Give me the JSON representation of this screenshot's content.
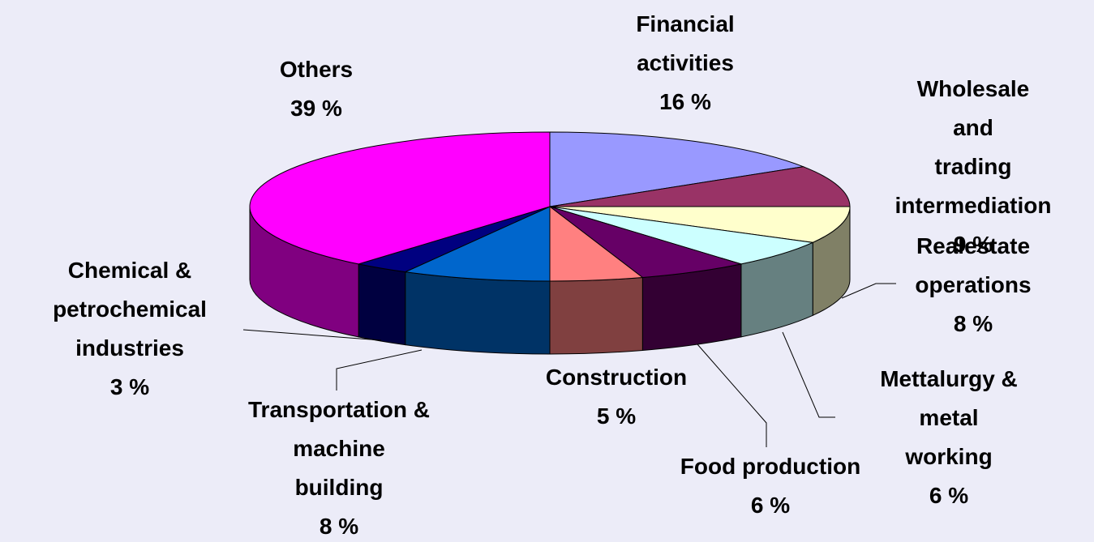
{
  "chart_data": {
    "type": "pie3d",
    "categories": [
      "Financial\nactivities",
      "Wholesale and\ntrading\nintermediation",
      "Realestate\noperations",
      "Mettalurgy &\nmetal working",
      "Food production",
      "Construction",
      "Transportation &\nmachine\nbuilding",
      "Chemical &\npetrochemical\nindustries",
      "Others"
    ],
    "values": [
      16,
      9,
      8,
      6,
      6,
      5,
      8,
      3,
      39
    ],
    "value_labels": [
      "16 %",
      "9 %",
      "8 %",
      "6 %",
      "6 %",
      "5 %",
      "8 %",
      "3 %",
      "39 %"
    ],
    "colors": [
      "#9999ff",
      "#993366",
      "#ffffcc",
      "#ccffff",
      "#660066",
      "#ff8080",
      "#0066cc",
      "#000080",
      "#ff00ff"
    ]
  }
}
